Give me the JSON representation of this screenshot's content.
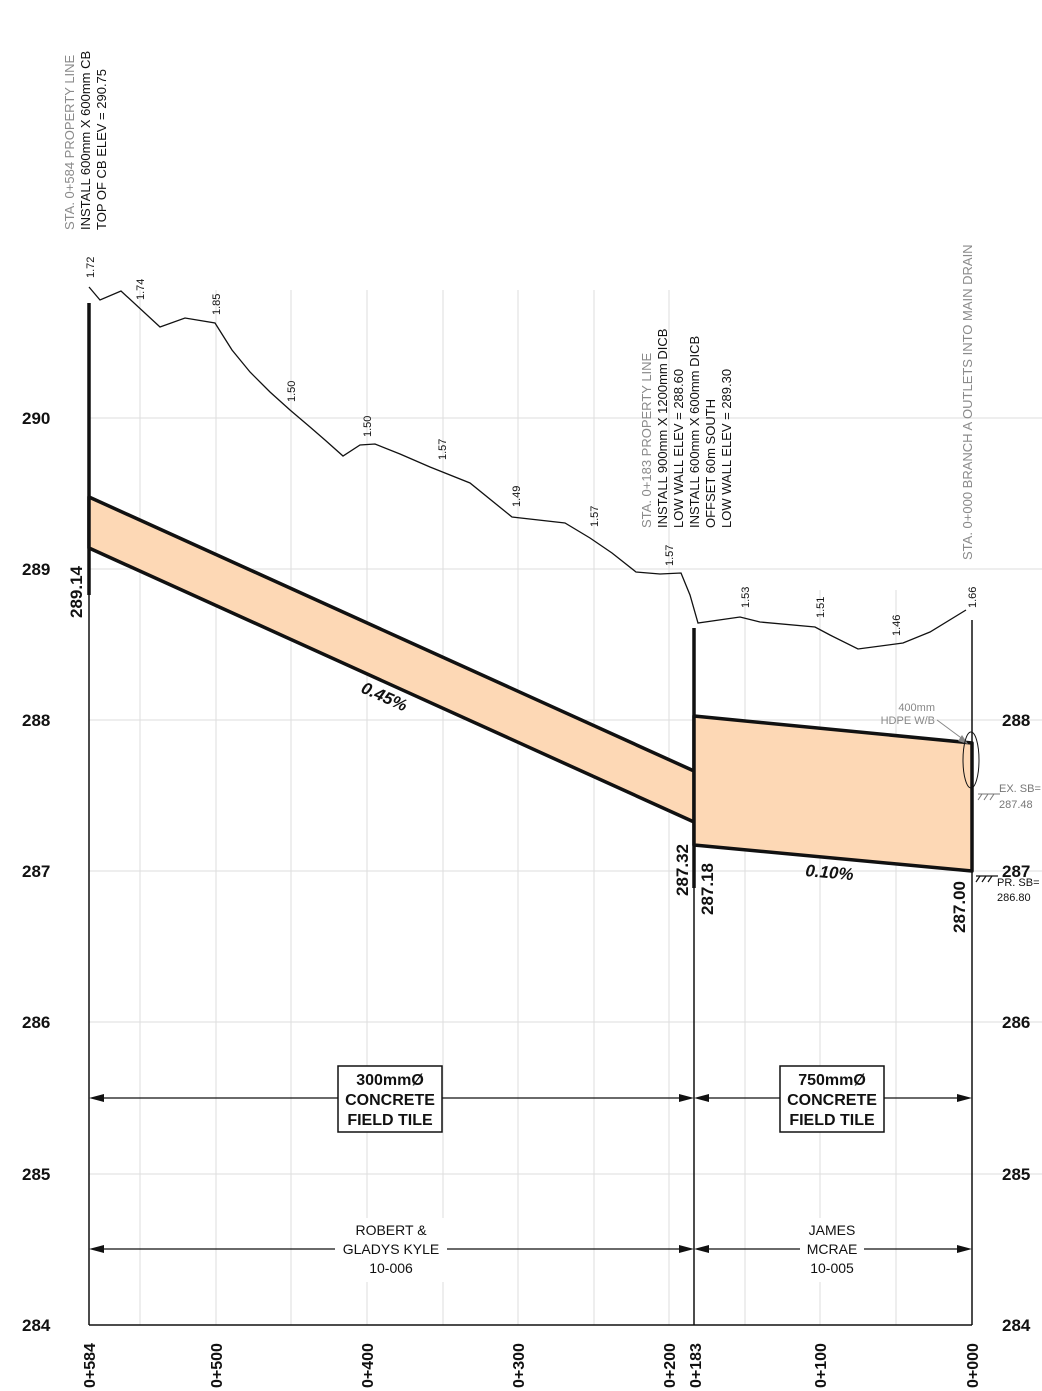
{
  "y_axis": {
    "left_ticks": [
      "290",
      "289",
      "288",
      "287",
      "286",
      "285",
      "284"
    ],
    "right_ticks": [
      "288",
      "287",
      "286",
      "285",
      "284"
    ]
  },
  "x_axis": {
    "ticks": [
      "0+584",
      "0+500",
      "0+400",
      "0+300",
      "0+200",
      "0+183",
      "0+100",
      "0+000"
    ]
  },
  "notes": {
    "sta584": {
      "line1": "STA. 0+584 PROPERTY LINE",
      "line2": "INSTALL 600mm X 600mm CB",
      "line3": "TOP OF CB ELEV = 290.75"
    },
    "sta183": {
      "line1": "STA. 0+183 PROPERTY LINE",
      "line2": "INSTALL 900mm X 1200mm DICB",
      "line3": "LOW WALL ELEV = 288.60",
      "line4": "INSTALL 600mm X 600mm DICB",
      "line5": "OFFSET 60m SOUTH",
      "line6": "LOW WALL ELEV = 289.30"
    },
    "sta000": {
      "line1": "STA. 0+000 BRANCH A OUTLETS INTO MAIN DRAIN"
    }
  },
  "ground": {
    "labels": [
      "1.72",
      "1.74",
      "1.85",
      "1.50",
      "1.50",
      "1.57",
      "1.49",
      "1.57",
      "1.57",
      "1.53",
      "1.51",
      "1.46",
      "1.66"
    ]
  },
  "invert_elevations": {
    "e1": "289.14",
    "e2": "287.32",
    "e3": "287.18",
    "e4": "287.00"
  },
  "slopes": {
    "s1": "0.45%",
    "s2": "0.10%"
  },
  "pipes": {
    "p1": {
      "l1": "300mmØ",
      "l2": "CONCRETE",
      "l3": "FIELD TILE"
    },
    "p2": {
      "l1": "750mmØ",
      "l2": "CONCRETE",
      "l3": "FIELD TILE"
    }
  },
  "owners": {
    "o1": {
      "l1": "ROBERT &",
      "l2": "GLADYS KYLE",
      "l3": "10-006"
    },
    "o2": {
      "l1": "JAMES",
      "l2": "MCRAE",
      "l3": "10-005"
    }
  },
  "outlet": {
    "l1": "400mm",
    "l2": "HDPE W/B"
  },
  "streambed": {
    "ex_l1": "EX. SB=",
    "ex_l2": "287.48",
    "pr_l1": "PR. SB=",
    "pr_l2": "286.80"
  },
  "colors": {
    "pipe_fill": "#fdd8b5",
    "grid": "#dedede"
  }
}
